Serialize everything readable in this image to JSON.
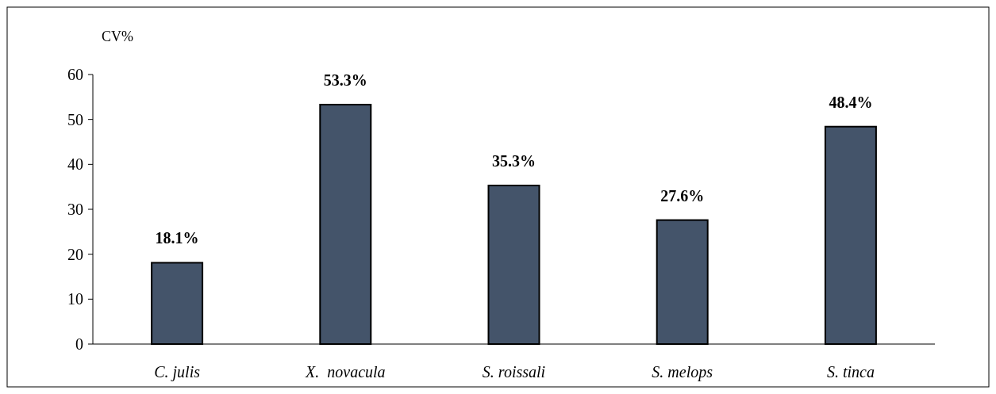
{
  "chart_data": {
    "type": "bar",
    "ylabel": "CV%",
    "categories": [
      "C. julis",
      "X.  novacula",
      "S. roissali",
      "S. melops",
      "S. tinca"
    ],
    "values": [
      18.1,
      53.3,
      35.3,
      27.6,
      48.4
    ],
    "value_labels": [
      "18.1%",
      "53.3%",
      "35.3%",
      "27.6%",
      "48.4%"
    ],
    "color": "#44546a",
    "ylim": [
      0,
      60
    ],
    "yticks": [
      0,
      10,
      20,
      30,
      40,
      50,
      60
    ],
    "grid": false
  }
}
